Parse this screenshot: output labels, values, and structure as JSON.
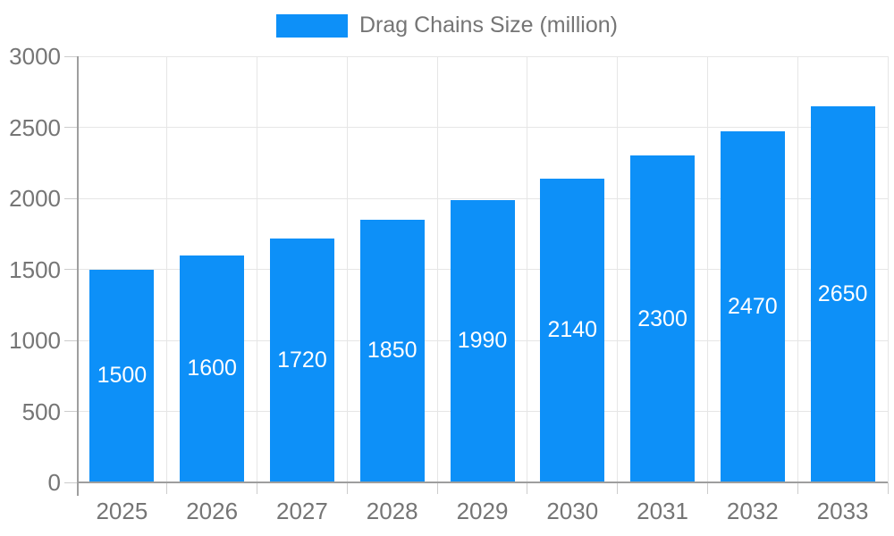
{
  "chart_data": {
    "type": "bar",
    "title": "Drag Chains Size (million)",
    "categories": [
      "2025",
      "2026",
      "2027",
      "2028",
      "2029",
      "2030",
      "2031",
      "2032",
      "2033"
    ],
    "values": [
      1500,
      1600,
      1720,
      1850,
      1990,
      2140,
      2300,
      2470,
      2650
    ],
    "series": [
      {
        "name": "Drag Chains Size (million)",
        "values": [
          1500,
          1600,
          1720,
          1850,
          1990,
          2140,
          2300,
          2470,
          2650
        ]
      }
    ],
    "xlabel": "",
    "ylabel": "",
    "ylim": [
      0,
      3000
    ],
    "yticks": [
      0,
      500,
      1000,
      1500,
      2000,
      2500,
      3000
    ],
    "grid": true,
    "legend_position": "top",
    "data_labels": "inside-center",
    "colors": {
      "bar": "#0d90f8",
      "bar_label_text": "#ffffff",
      "axis_text": "#757575",
      "legend_text": "#757575",
      "gridline": "#e6e6e6",
      "axis_line": "#9e9e9e",
      "tick_mark": "#cccccc",
      "background": "#ffffff"
    }
  }
}
